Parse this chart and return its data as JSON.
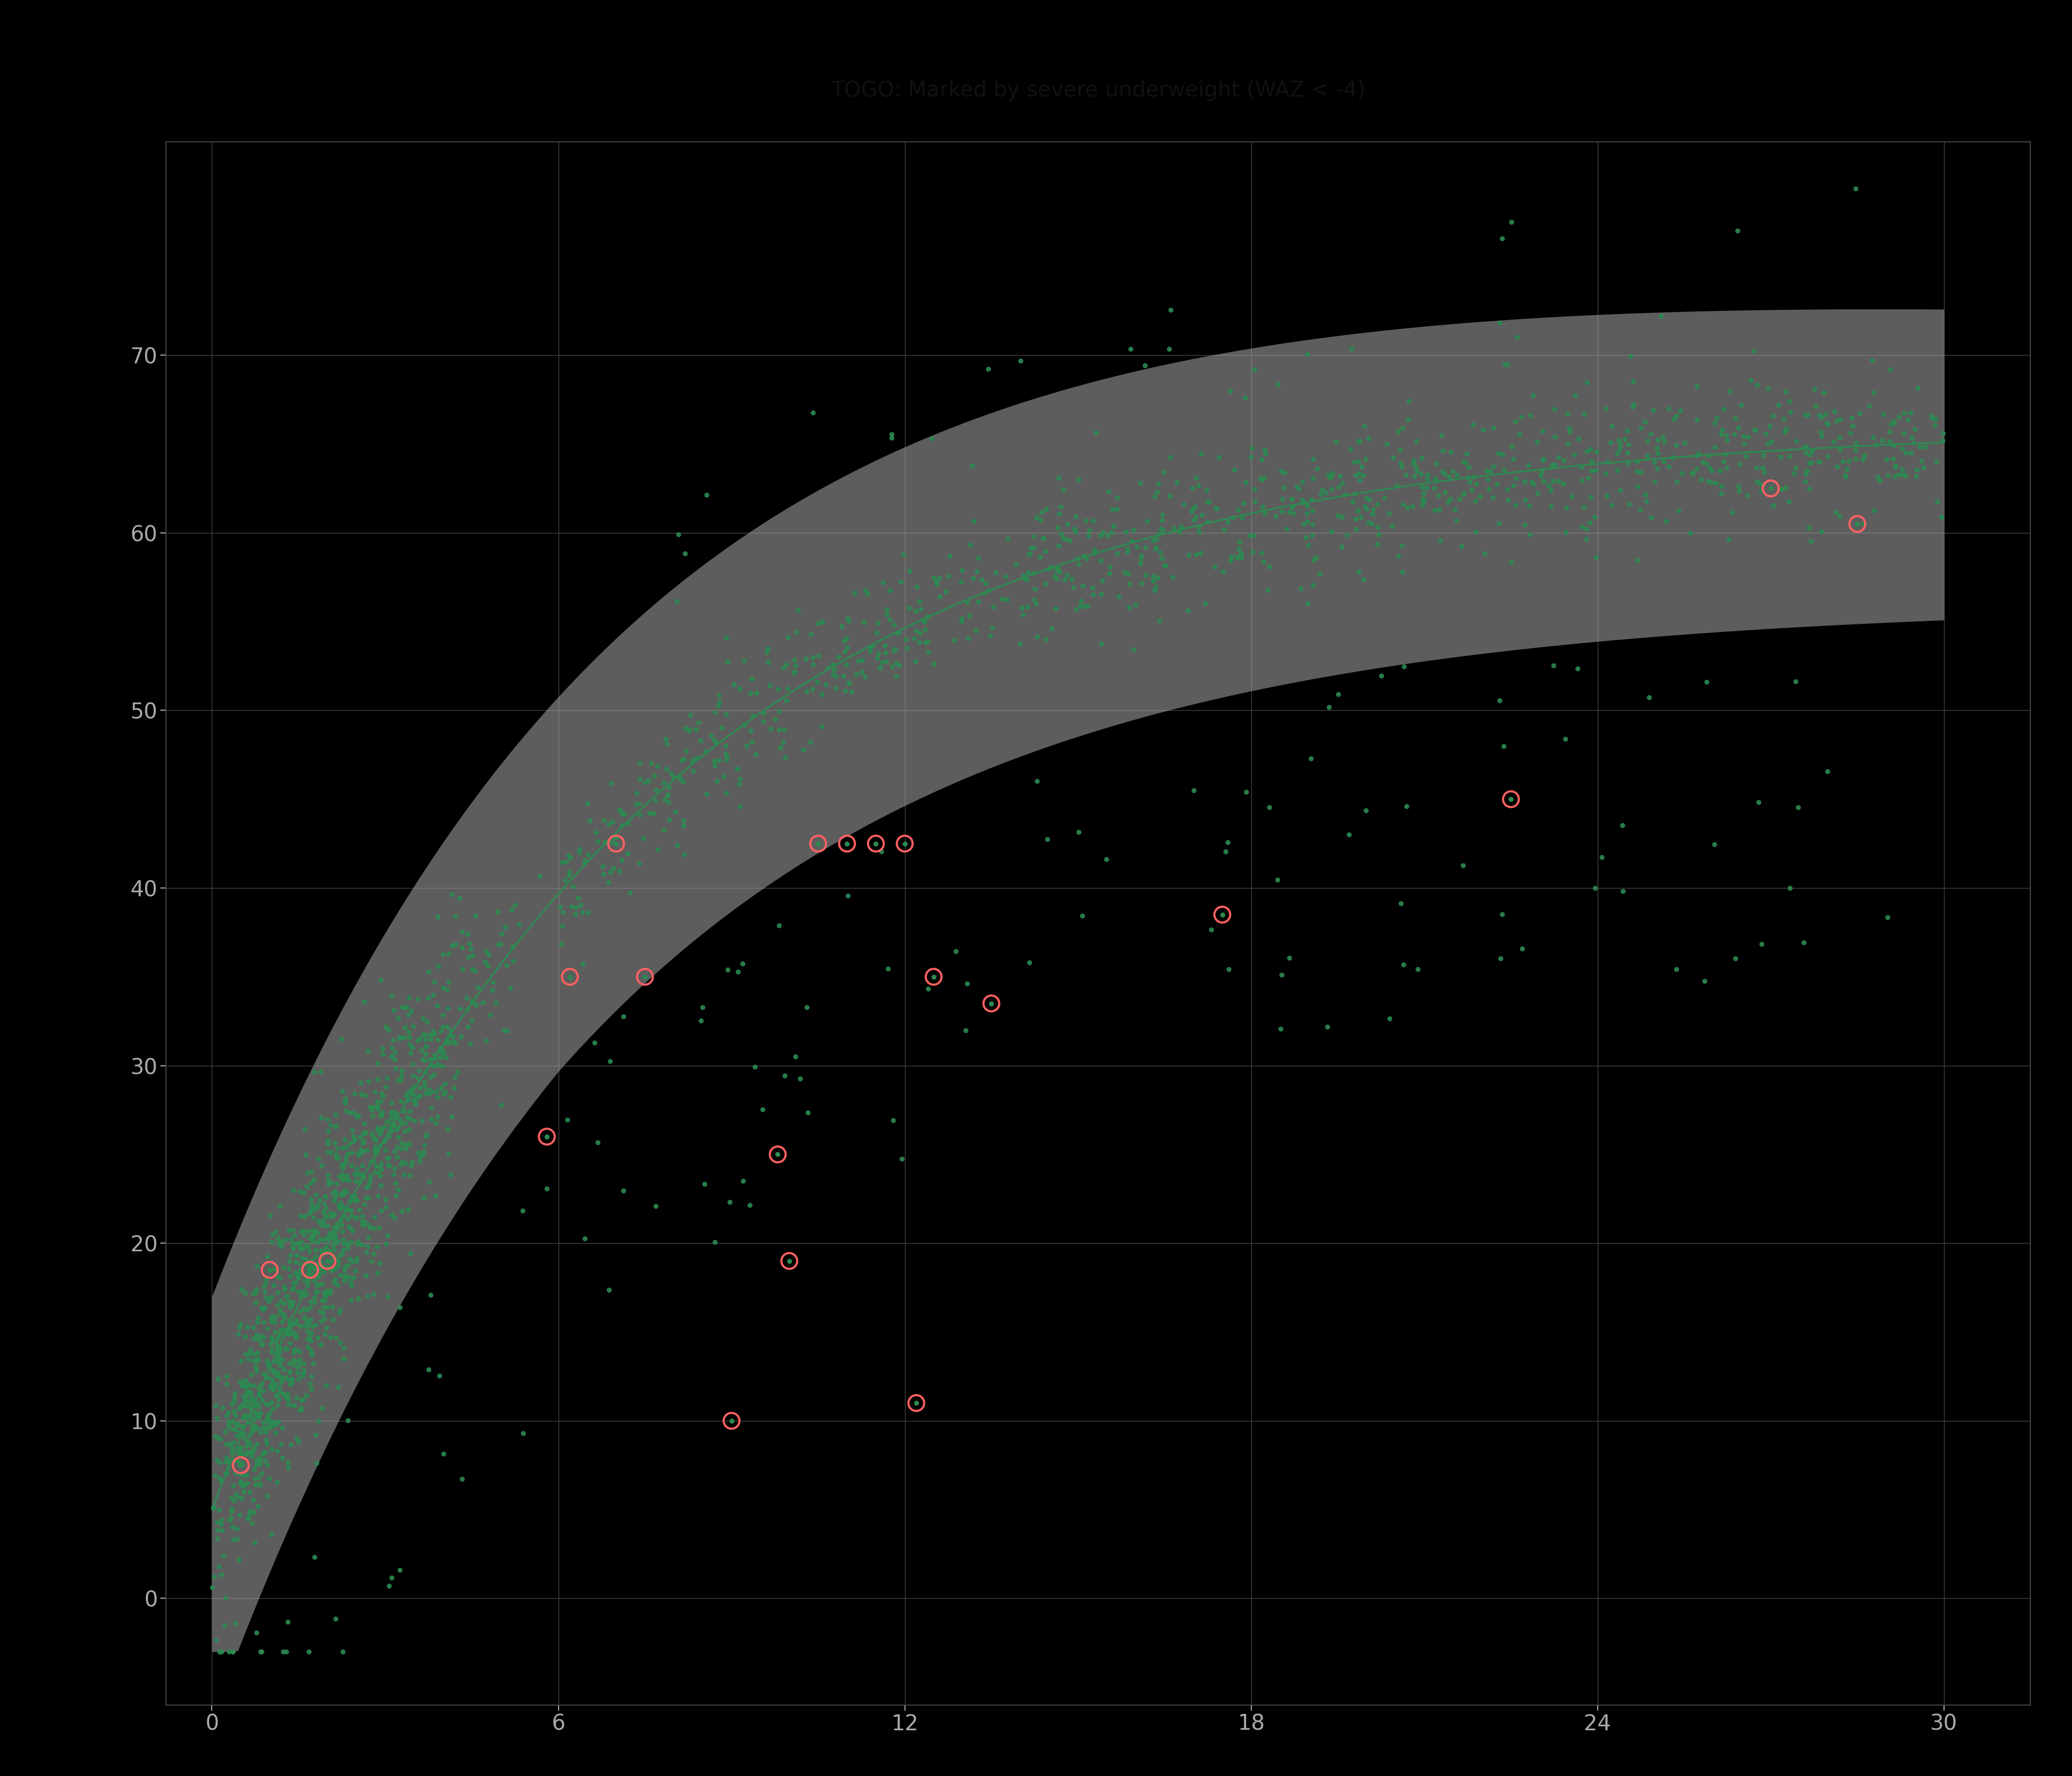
{
  "title": "TOGO: Marked by severe underweight (WAZ < -4)",
  "bg_color": "#000000",
  "title_bg_color": "#999999",
  "plot_bg_color": "#000000",
  "grid_color": "#444444",
  "point_color": "#2d8a52",
  "circle_color": "#FF6060",
  "line_color": "#2d8a52",
  "ribbon_color": "#aaaaaa",
  "ribbon_alpha": 0.55,
  "xlim": [
    -0.8,
    31.5
  ],
  "ylim": [
    -6,
    82
  ],
  "xticks": [
    0,
    6,
    12,
    18,
    24,
    30
  ],
  "yticks": [
    0,
    10,
    20,
    30,
    40,
    50,
    60,
    70
  ],
  "tick_color": "#aaaaaa",
  "tick_fontsize": 30,
  "title_fontsize": 30,
  "point_size": 7,
  "point_alpha": 0.9,
  "line_width": 2.5,
  "circled_ages": [
    0.5,
    1.0,
    1.7,
    2.0,
    5.8,
    6.2,
    7.0,
    7.5,
    9.0,
    9.8,
    10.0,
    10.5,
    11.0,
    11.5,
    12.0,
    12.2,
    12.5,
    13.5,
    17.5,
    22.5,
    27.0,
    28.5
  ],
  "circled_dscores": [
    7.5,
    18.5,
    18.5,
    19.0,
    26.0,
    35.0,
    42.5,
    35.0,
    10.0,
    25.0,
    19.0,
    42.5,
    42.5,
    42.5,
    42.5,
    11.0,
    35.0,
    33.5,
    38.5,
    45.0,
    62.5,
    60.5
  ]
}
